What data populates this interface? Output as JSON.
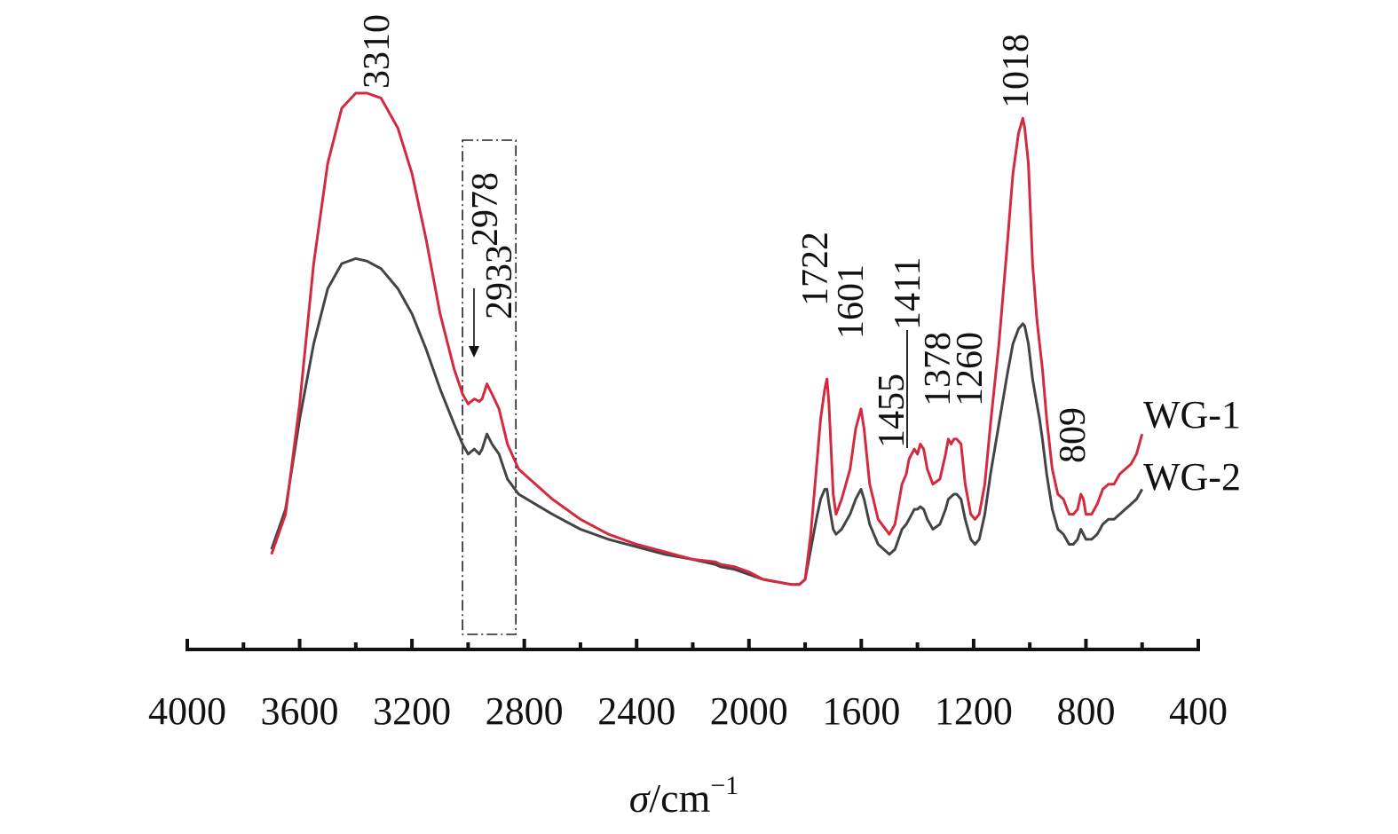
{
  "chart_data": {
    "type": "line",
    "title": "",
    "xlabel": "σ/cm⁻¹",
    "ylabel": "",
    "x_ticks": [
      4000,
      3600,
      3200,
      2800,
      2400,
      2000,
      1600,
      1200,
      800,
      400
    ],
    "xlim": [
      4000,
      400
    ],
    "x_reversed": true,
    "y_axis_visible": false,
    "grid": false,
    "legend_placement": "right, beside curve ends",
    "colors": {
      "WG-1": "#d42a3f",
      "WG-2": "#444444",
      "box": "#222222"
    },
    "series": [
      {
        "name": "WG-1",
        "points": [
          [
            3700,
            0.08
          ],
          [
            3650,
            0.16
          ],
          [
            3600,
            0.38
          ],
          [
            3550,
            0.66
          ],
          [
            3500,
            0.86
          ],
          [
            3450,
            0.97
          ],
          [
            3400,
            1.0
          ],
          [
            3360,
            1.0
          ],
          [
            3310,
            0.99
          ],
          [
            3250,
            0.93
          ],
          [
            3200,
            0.84
          ],
          [
            3150,
            0.71
          ],
          [
            3100,
            0.56
          ],
          [
            3050,
            0.45
          ],
          [
            3020,
            0.4
          ],
          [
            3000,
            0.38
          ],
          [
            2978,
            0.39
          ],
          [
            2960,
            0.385
          ],
          [
            2950,
            0.39
          ],
          [
            2933,
            0.42
          ],
          [
            2915,
            0.4
          ],
          [
            2890,
            0.37
          ],
          [
            2860,
            0.3
          ],
          [
            2820,
            0.25
          ],
          [
            2760,
            0.22
          ],
          [
            2700,
            0.19
          ],
          [
            2600,
            0.15
          ],
          [
            2500,
            0.12
          ],
          [
            2400,
            0.1
          ],
          [
            2300,
            0.085
          ],
          [
            2200,
            0.07
          ],
          [
            2120,
            0.065
          ],
          [
            2100,
            0.06
          ],
          [
            2050,
            0.055
          ],
          [
            2000,
            0.045
          ],
          [
            1950,
            0.03
          ],
          [
            1900,
            0.025
          ],
          [
            1850,
            0.02
          ],
          [
            1820,
            0.02
          ],
          [
            1800,
            0.03
          ],
          [
            1780,
            0.12
          ],
          [
            1760,
            0.25
          ],
          [
            1745,
            0.35
          ],
          [
            1730,
            0.41
          ],
          [
            1722,
            0.43
          ],
          [
            1715,
            0.38
          ],
          [
            1700,
            0.2
          ],
          [
            1690,
            0.16
          ],
          [
            1670,
            0.19
          ],
          [
            1640,
            0.25
          ],
          [
            1620,
            0.33
          ],
          [
            1601,
            0.37
          ],
          [
            1590,
            0.33
          ],
          [
            1570,
            0.22
          ],
          [
            1540,
            0.15
          ],
          [
            1500,
            0.12
          ],
          [
            1480,
            0.14
          ],
          [
            1455,
            0.22
          ],
          [
            1440,
            0.24
          ],
          [
            1430,
            0.27
          ],
          [
            1411,
            0.29
          ],
          [
            1400,
            0.28
          ],
          [
            1390,
            0.3
          ],
          [
            1378,
            0.29
          ],
          [
            1365,
            0.25
          ],
          [
            1345,
            0.22
          ],
          [
            1320,
            0.23
          ],
          [
            1300,
            0.28
          ],
          [
            1290,
            0.31
          ],
          [
            1280,
            0.3
          ],
          [
            1270,
            0.31
          ],
          [
            1260,
            0.31
          ],
          [
            1245,
            0.3
          ],
          [
            1230,
            0.22
          ],
          [
            1210,
            0.16
          ],
          [
            1195,
            0.15
          ],
          [
            1180,
            0.16
          ],
          [
            1160,
            0.22
          ],
          [
            1140,
            0.34
          ],
          [
            1110,
            0.5
          ],
          [
            1080,
            0.7
          ],
          [
            1060,
            0.84
          ],
          [
            1040,
            0.92
          ],
          [
            1025,
            0.95
          ],
          [
            1018,
            0.93
          ],
          [
            1005,
            0.86
          ],
          [
            990,
            0.66
          ],
          [
            975,
            0.55
          ],
          [
            965,
            0.5
          ],
          [
            955,
            0.45
          ],
          [
            940,
            0.35
          ],
          [
            920,
            0.25
          ],
          [
            900,
            0.2
          ],
          [
            880,
            0.19
          ],
          [
            860,
            0.16
          ],
          [
            845,
            0.16
          ],
          [
            830,
            0.17
          ],
          [
            818,
            0.2
          ],
          [
            809,
            0.19
          ],
          [
            800,
            0.16
          ],
          [
            780,
            0.16
          ],
          [
            760,
            0.18
          ],
          [
            740,
            0.21
          ],
          [
            720,
            0.22
          ],
          [
            700,
            0.22
          ],
          [
            680,
            0.24
          ],
          [
            660,
            0.25
          ],
          [
            640,
            0.26
          ],
          [
            620,
            0.28
          ],
          [
            600,
            0.32
          ]
        ]
      },
      {
        "name": "WG-2",
        "points": [
          [
            3700,
            0.09
          ],
          [
            3650,
            0.17
          ],
          [
            3600,
            0.35
          ],
          [
            3550,
            0.5
          ],
          [
            3500,
            0.61
          ],
          [
            3450,
            0.66
          ],
          [
            3400,
            0.67
          ],
          [
            3360,
            0.665
          ],
          [
            3310,
            0.65
          ],
          [
            3250,
            0.61
          ],
          [
            3200,
            0.56
          ],
          [
            3150,
            0.49
          ],
          [
            3100,
            0.41
          ],
          [
            3050,
            0.34
          ],
          [
            3020,
            0.3
          ],
          [
            3000,
            0.28
          ],
          [
            2978,
            0.29
          ],
          [
            2960,
            0.28
          ],
          [
            2950,
            0.29
          ],
          [
            2933,
            0.32
          ],
          [
            2915,
            0.3
          ],
          [
            2890,
            0.28
          ],
          [
            2860,
            0.23
          ],
          [
            2820,
            0.2
          ],
          [
            2760,
            0.18
          ],
          [
            2700,
            0.16
          ],
          [
            2600,
            0.13
          ],
          [
            2500,
            0.11
          ],
          [
            2400,
            0.095
          ],
          [
            2300,
            0.08
          ],
          [
            2200,
            0.07
          ],
          [
            2120,
            0.06
          ],
          [
            2100,
            0.055
          ],
          [
            2050,
            0.05
          ],
          [
            2000,
            0.04
          ],
          [
            1950,
            0.03
          ],
          [
            1900,
            0.025
          ],
          [
            1850,
            0.02
          ],
          [
            1820,
            0.02
          ],
          [
            1800,
            0.03
          ],
          [
            1780,
            0.09
          ],
          [
            1760,
            0.15
          ],
          [
            1745,
            0.19
          ],
          [
            1730,
            0.21
          ],
          [
            1722,
            0.21
          ],
          [
            1715,
            0.18
          ],
          [
            1700,
            0.13
          ],
          [
            1690,
            0.12
          ],
          [
            1670,
            0.13
          ],
          [
            1640,
            0.16
          ],
          [
            1620,
            0.19
          ],
          [
            1601,
            0.21
          ],
          [
            1590,
            0.19
          ],
          [
            1570,
            0.14
          ],
          [
            1540,
            0.1
          ],
          [
            1500,
            0.08
          ],
          [
            1480,
            0.09
          ],
          [
            1455,
            0.13
          ],
          [
            1440,
            0.14
          ],
          [
            1430,
            0.15
          ],
          [
            1411,
            0.17
          ],
          [
            1400,
            0.17
          ],
          [
            1390,
            0.175
          ],
          [
            1378,
            0.17
          ],
          [
            1365,
            0.15
          ],
          [
            1345,
            0.13
          ],
          [
            1320,
            0.14
          ],
          [
            1300,
            0.17
          ],
          [
            1290,
            0.19
          ],
          [
            1280,
            0.195
          ],
          [
            1270,
            0.2
          ],
          [
            1260,
            0.2
          ],
          [
            1245,
            0.19
          ],
          [
            1230,
            0.15
          ],
          [
            1210,
            0.11
          ],
          [
            1195,
            0.1
          ],
          [
            1180,
            0.11
          ],
          [
            1160,
            0.16
          ],
          [
            1140,
            0.24
          ],
          [
            1110,
            0.34
          ],
          [
            1080,
            0.44
          ],
          [
            1060,
            0.5
          ],
          [
            1040,
            0.53
          ],
          [
            1025,
            0.54
          ],
          [
            1018,
            0.535
          ],
          [
            1005,
            0.5
          ],
          [
            990,
            0.43
          ],
          [
            975,
            0.38
          ],
          [
            965,
            0.35
          ],
          [
            955,
            0.31
          ],
          [
            940,
            0.24
          ],
          [
            920,
            0.17
          ],
          [
            900,
            0.13
          ],
          [
            880,
            0.12
          ],
          [
            860,
            0.1
          ],
          [
            845,
            0.1
          ],
          [
            830,
            0.11
          ],
          [
            818,
            0.13
          ],
          [
            809,
            0.12
          ],
          [
            800,
            0.11
          ],
          [
            780,
            0.11
          ],
          [
            760,
            0.12
          ],
          [
            740,
            0.14
          ],
          [
            720,
            0.15
          ],
          [
            700,
            0.15
          ],
          [
            680,
            0.16
          ],
          [
            660,
            0.17
          ],
          [
            640,
            0.18
          ],
          [
            620,
            0.19
          ],
          [
            600,
            0.21
          ]
        ]
      }
    ],
    "peak_annotations": [
      {
        "label": "3310",
        "x": 3310,
        "series": "WG-1"
      },
      {
        "label": "2978",
        "x": 2978,
        "series": "WG-1"
      },
      {
        "label": "2933",
        "x": 2933,
        "series": "WG-1"
      },
      {
        "label": "1722",
        "x": 1722,
        "series": "WG-1"
      },
      {
        "label": "1601",
        "x": 1601,
        "series": "WG-1"
      },
      {
        "label": "1455",
        "x": 1455,
        "series": "WG-1"
      },
      {
        "label": "1411",
        "x": 1411,
        "series": "WG-1"
      },
      {
        "label": "1378",
        "x": 1378,
        "series": "WG-1"
      },
      {
        "label": "1260",
        "x": 1260,
        "series": "WG-1"
      },
      {
        "label": "1018",
        "x": 1018,
        "series": "WG-1"
      },
      {
        "label": "809",
        "x": 809,
        "series": "WG-1"
      }
    ],
    "highlight_box": {
      "x_from": 3020,
      "x_to": 2830,
      "style": "dash-dot"
    }
  }
}
